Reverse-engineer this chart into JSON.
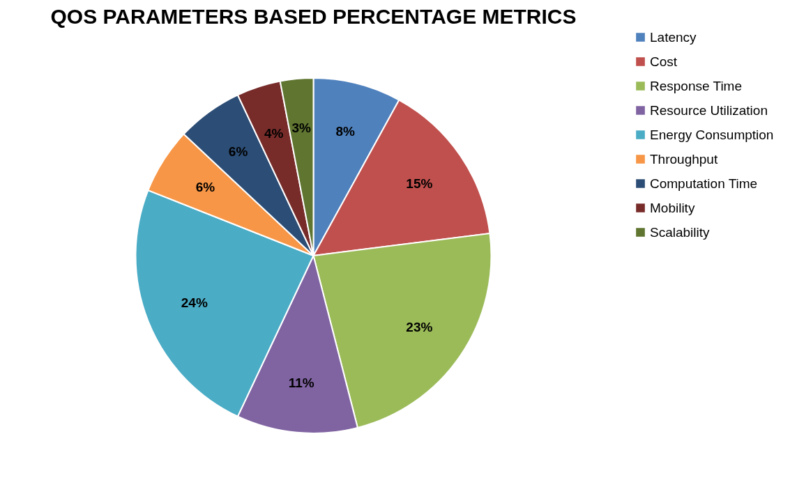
{
  "chart_data": {
    "type": "pie",
    "title": "QOS PARAMETERS BASED PERCENTAGE METRICS",
    "categories": [
      "Latency",
      "Cost",
      "Response Time",
      "Resource Utilization",
      "Energy Consumption",
      "Throughput",
      "Computation Time",
      "Mobility",
      "Scalability"
    ],
    "values": [
      8,
      15,
      23,
      11,
      24,
      6,
      6,
      4,
      3
    ],
    "colors": [
      "#4f81bd",
      "#c0504d",
      "#9bbb59",
      "#8064a2",
      "#4bacc6",
      "#f79646",
      "#2c4d75",
      "#772c2a",
      "#5f7530"
    ],
    "value_labels": [
      "8%",
      "15%",
      "23%",
      "11%",
      "24%",
      "6%",
      "6%",
      "4%",
      "3%"
    ],
    "legend": "right"
  }
}
